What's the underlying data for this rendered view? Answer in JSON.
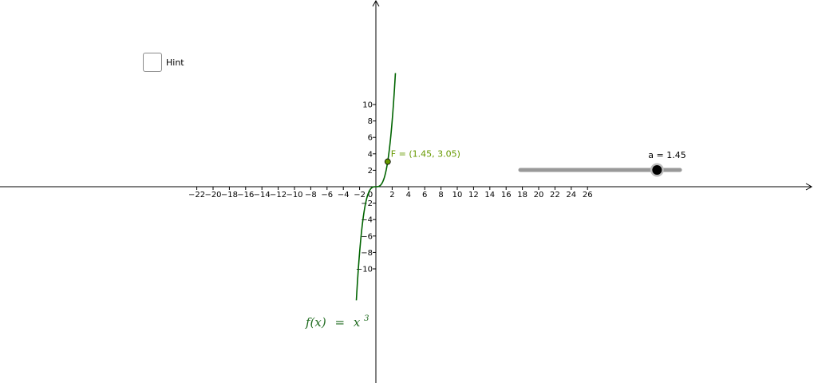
{
  "hint_checkbox": {
    "label": "Hint",
    "checked": false
  },
  "graph": {
    "function_label_lhs": "f(x)",
    "function_label_eq": "=",
    "function_label_rhs": "x",
    "function_label_exp": "3",
    "curve_color": "#006400",
    "point_color": "#669900",
    "point_label": "F = (1.45, 3.05)",
    "point": {
      "x": 1.45,
      "y": 3.05
    }
  },
  "slider": {
    "label": "a = 1.45",
    "value": 1.45,
    "min": 0,
    "max": 1.5
  },
  "axes": {
    "x_ticks": [
      "−22",
      "−20",
      "−18",
      "−16",
      "−14",
      "−12",
      "−10",
      "−8",
      "−6",
      "−4",
      "−2",
      "0",
      "2",
      "4",
      "6",
      "8",
      "10",
      "12",
      "14",
      "16",
      "18",
      "20",
      "22",
      "24",
      "26"
    ],
    "y_ticks_pos": [
      "2",
      "4",
      "6",
      "8",
      "10"
    ],
    "y_ticks_neg": [
      "−2",
      "−4",
      "−6",
      "−8",
      "−10"
    ]
  },
  "colors": {
    "axis": "#000000",
    "slider_track": "#999999",
    "slider_thumb": "#000000"
  }
}
